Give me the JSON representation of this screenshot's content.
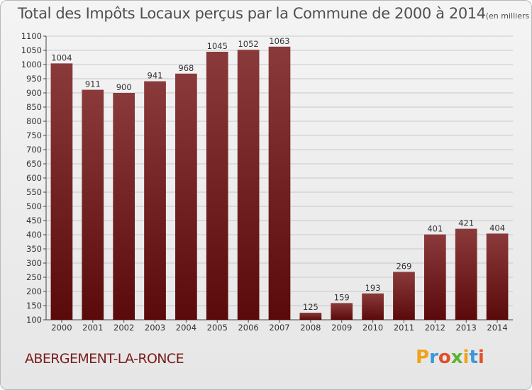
{
  "header": {
    "title": "Total des Impôts Locaux perçus par la Commune de 2000 à 2014",
    "unit": "(en milliers d'€)"
  },
  "footer": {
    "commune": "ABERGEMENT-LA-RONCE",
    "logo_letters": [
      "P",
      "r",
      "o",
      "x",
      "i",
      "t",
      "i"
    ],
    "logo_colors": [
      "#f0a21a",
      "#3a9ad9",
      "#e2502a",
      "#5cb531",
      "#f0a21a",
      "#3a9ad9",
      "#e2502a"
    ]
  },
  "colors": {
    "bar_top": "#8a3a3a",
    "bar_bottom": "#5a0a0a",
    "grid": "#c8c8c8"
  },
  "chart_data": {
    "type": "bar",
    "categories": [
      "2000",
      "2001",
      "2002",
      "2003",
      "2004",
      "2005",
      "2006",
      "2007",
      "2008",
      "2009",
      "2010",
      "2011",
      "2012",
      "2013",
      "2014"
    ],
    "values": [
      1004,
      911,
      900,
      941,
      968,
      1045,
      1052,
      1063,
      125,
      159,
      193,
      269,
      401,
      421,
      404
    ],
    "title": "Total des Impôts Locaux perçus par la Commune de 2000 à 2014",
    "ylim": [
      100,
      1100
    ],
    "yticks": [
      100,
      150,
      200,
      250,
      300,
      350,
      400,
      450,
      500,
      550,
      600,
      650,
      700,
      750,
      800,
      850,
      900,
      950,
      1000,
      1050,
      1100
    ],
    "grid": true
  }
}
